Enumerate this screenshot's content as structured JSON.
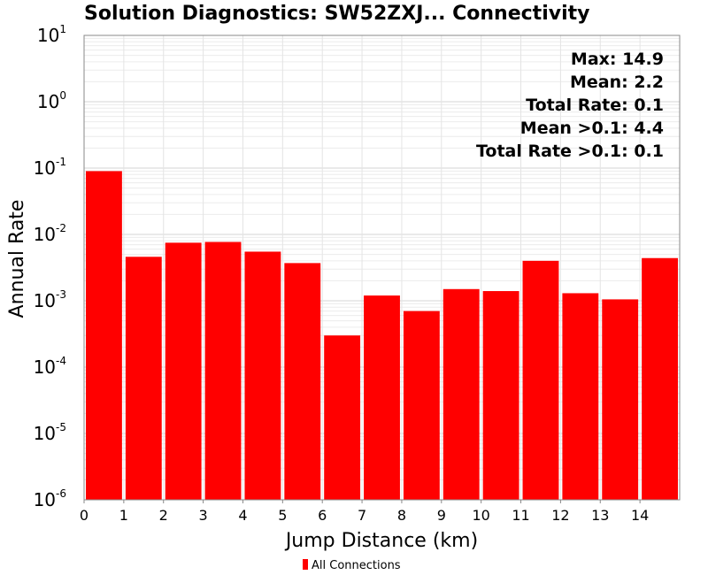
{
  "chart_data": {
    "type": "bar",
    "title": "Solution Diagnostics: SW52ZXJ... Connectivity",
    "xlabel": "Jump Distance (km)",
    "ylabel": "Annual Rate",
    "y_scale": "log",
    "ylim": [
      1e-06,
      10
    ],
    "xlim": [
      0,
      15
    ],
    "x_ticks": [
      "0",
      "1",
      "2",
      "3",
      "4",
      "5",
      "6",
      "7",
      "8",
      "9",
      "10",
      "11",
      "12",
      "13",
      "14"
    ],
    "y_ticks": [
      {
        "base": "10",
        "exp": "1"
      },
      {
        "base": "10",
        "exp": "0"
      },
      {
        "base": "10",
        "exp": "-1"
      },
      {
        "base": "10",
        "exp": "-2"
      },
      {
        "base": "10",
        "exp": "-3"
      },
      {
        "base": "10",
        "exp": "-4"
      },
      {
        "base": "10",
        "exp": "-5"
      },
      {
        "base": "10",
        "exp": "-6"
      }
    ],
    "grid": true,
    "bar_color": "#ff0000",
    "series": [
      {
        "name": "All Connections",
        "x": [
          0.5,
          1.5,
          2.5,
          3.5,
          4.5,
          5.5,
          6.5,
          7.5,
          8.5,
          9.5,
          10.5,
          11.5,
          12.5,
          13.5,
          14.5
        ],
        "values": [
          0.09,
          0.0046,
          0.0075,
          0.0077,
          0.0055,
          0.0037,
          0.0003,
          0.0012,
          0.0007,
          0.0015,
          0.0014,
          0.004,
          0.0013,
          0.00105,
          0.0044
        ]
      }
    ],
    "annotations": [
      "Max: 14.9",
      "Mean: 2.2",
      "Total Rate: 0.1",
      "Mean >0.1: 4.4",
      "Total Rate >0.1: 0.1"
    ],
    "legend": {
      "position": "bottom-center",
      "entries": [
        "All Connections"
      ]
    }
  }
}
